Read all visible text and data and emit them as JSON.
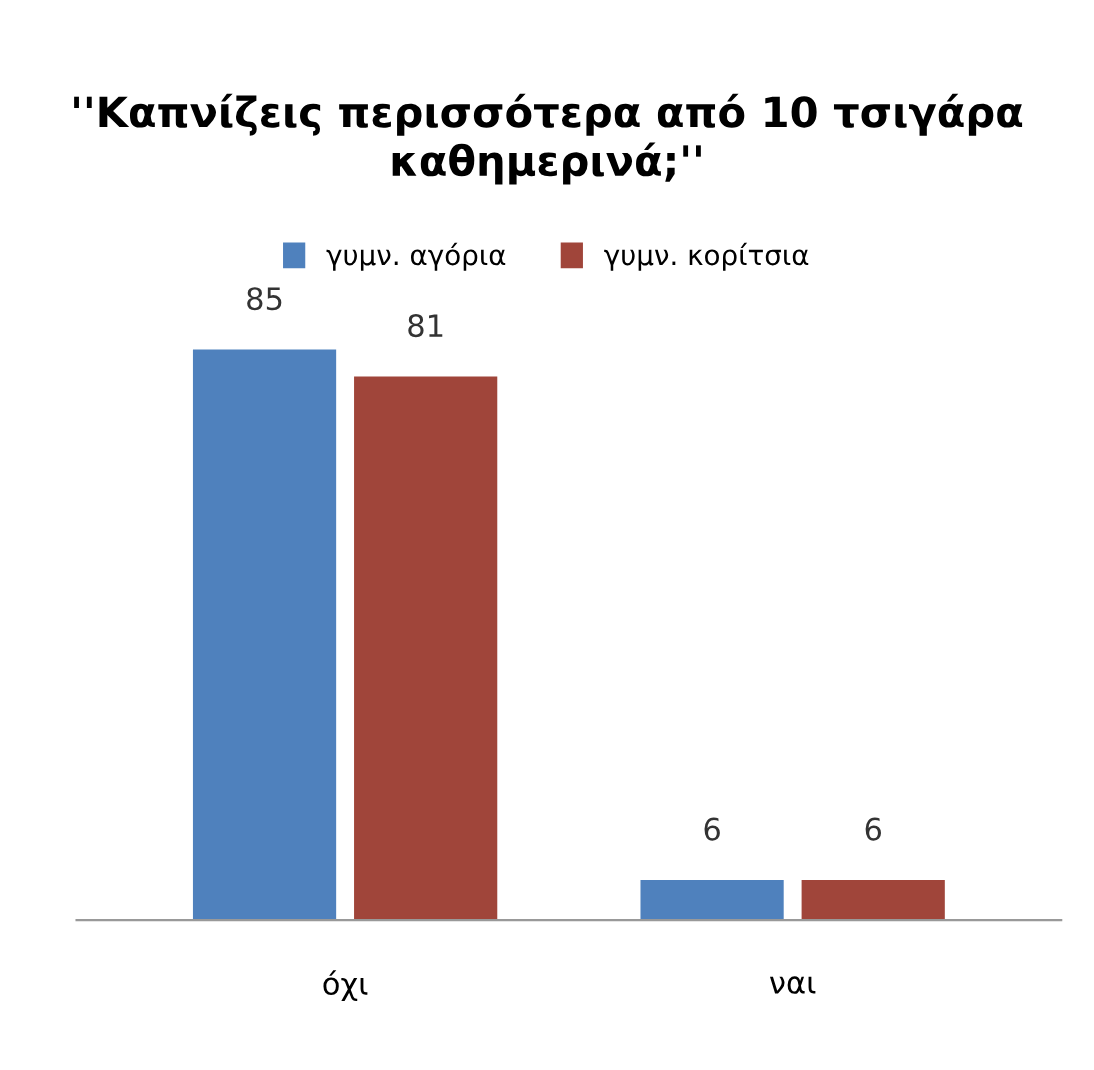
{
  "chart_data": {
    "type": "bar",
    "title": "''Καπνίζεις περισσότερα από 10 τσιγάρα καθημερινά;''",
    "categories": [
      "όχι",
      "ναι"
    ],
    "series": [
      {
        "name": "γυμν. αγόρια",
        "color": "#4f81bd",
        "values": [
          85,
          6
        ]
      },
      {
        "name": "γυμν. κορίτσια",
        "color": "#a0453a",
        "values": [
          81,
          6
        ]
      }
    ],
    "data_labels": true,
    "legend": "top",
    "grid": false
  }
}
